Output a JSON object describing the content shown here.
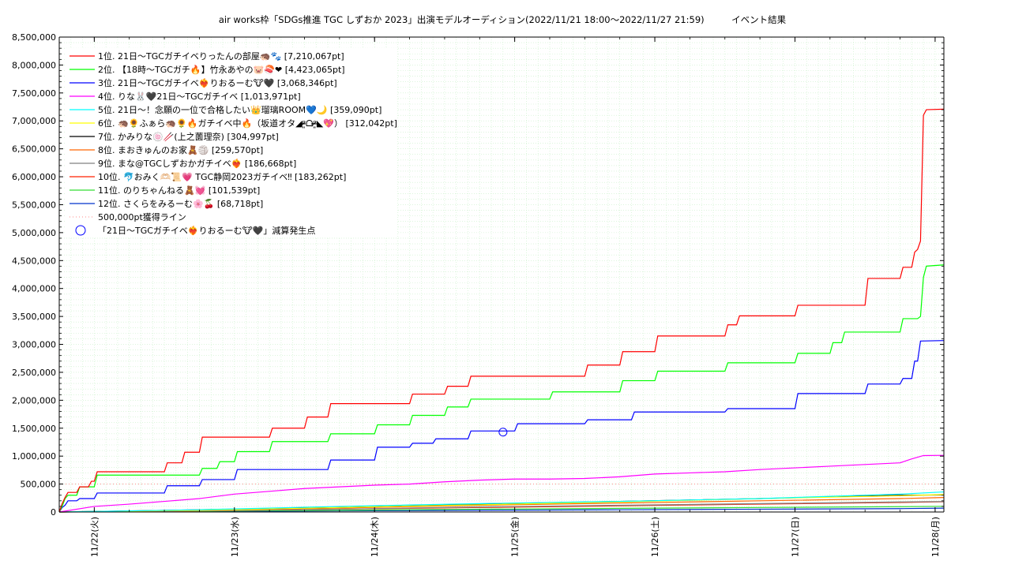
{
  "chart_data": {
    "type": "line",
    "title": "air works枠「SDGs推進 TGC しずおか 2023」出演モデルオーディション(2022/11/21 18:00〜2022/11/27 21:59)　　　イベント結果",
    "xlabel": "",
    "ylabel": "",
    "ylim": [
      0,
      8500000
    ],
    "yticks": [
      0,
      500000,
      1000000,
      1500000,
      2000000,
      2500000,
      3000000,
      3500000,
      4000000,
      4500000,
      5000000,
      5500000,
      6000000,
      6500000,
      7000000,
      7500000,
      8000000,
      8500000
    ],
    "ytick_labels": [
      "0",
      "500,000",
      "1,000,000",
      "1,500,000",
      "2,000,000",
      "2,500,000",
      "3,000,000",
      "3,500,000",
      "4,000,000",
      "4,500,000",
      "5,000,000",
      "5,500,000",
      "6,000,000",
      "6,500,000",
      "7,000,000",
      "7,500,000",
      "8,000,000",
      "8,500,000"
    ],
    "xlim": [
      0,
      151.5
    ],
    "x_unit": "hours since 2022-11-21 18:00",
    "xticks": [
      6,
      30,
      54,
      78,
      102,
      126,
      150
    ],
    "xtick_labels": [
      "11/22(火)",
      "11/23(水)",
      "11/24(木)",
      "11/25(金)",
      "11/26(土)",
      "11/27(日)",
      "11/28(月)"
    ],
    "grid": true,
    "legend_position": "top-left",
    "series": [
      {
        "name": "1位. 21日〜TGCガチイベりったんの部屋🦔🐾 [7,210,067pt]",
        "color": "#ff0000",
        "x": [
          0,
          0.5,
          1,
          1.5,
          3,
          3.5,
          5,
          5.5,
          6,
          6.5,
          18,
          18.5,
          21,
          21.5,
          24,
          24.5,
          30,
          30.5,
          36,
          36.5,
          42,
          42.5,
          46,
          46.5,
          54,
          54.5,
          60,
          60.5,
          66,
          66.5,
          70,
          70.5,
          78,
          78.5,
          90,
          90.5,
          96,
          96.5,
          102,
          102.5,
          114,
          114.5,
          116,
          116.5,
          126,
          126.5,
          138,
          138.5,
          144,
          144.5,
          146,
          146.5,
          147,
          147.5,
          148,
          148.5,
          151.5
        ],
        "y": [
          0,
          150000,
          260000,
          350000,
          350000,
          450000,
          450000,
          550000,
          550000,
          720000,
          720000,
          880000,
          880000,
          1070000,
          1070000,
          1340000,
          1340000,
          1340000,
          1340000,
          1500000,
          1500000,
          1700000,
          1700000,
          1940000,
          1940000,
          1940000,
          1940000,
          2110000,
          2110000,
          2250000,
          2250000,
          2430000,
          2430000,
          2430000,
          2430000,
          2630000,
          2630000,
          2870000,
          2870000,
          3150000,
          3150000,
          3350000,
          3350000,
          3510000,
          3510000,
          3700000,
          3700000,
          4180000,
          4180000,
          4380000,
          4380000,
          4650000,
          4700000,
          4850000,
          7100000,
          7200000,
          7210067
        ]
      },
      {
        "name": "2位. 【18時〜TGCガチ🔥】竹永あやの🐷🍣❤ [4,423,065pt]",
        "color": "#00ff00",
        "x": [
          0,
          0.5,
          1,
          1.5,
          3,
          3.5,
          6,
          6.5,
          24,
          24.5,
          27,
          27.5,
          30,
          30.5,
          36,
          36.5,
          46,
          46.5,
          54,
          54.5,
          60,
          60.5,
          66,
          66.5,
          70,
          70.5,
          78,
          78.5,
          84,
          84.5,
          90,
          90.5,
          96,
          96.5,
          102,
          102.5,
          114,
          114.5,
          126,
          126.5,
          132,
          132.5,
          134,
          134.5,
          144,
          144.5,
          146,
          146.5,
          147,
          147.5,
          148,
          148.5,
          151.5
        ],
        "y": [
          0,
          100000,
          240000,
          300000,
          300000,
          450000,
          450000,
          660000,
          660000,
          780000,
          780000,
          900000,
          900000,
          1080000,
          1080000,
          1260000,
          1260000,
          1400000,
          1400000,
          1560000,
          1560000,
          1730000,
          1730000,
          1880000,
          1880000,
          2020000,
          2020000,
          2020000,
          2020000,
          2150000,
          2150000,
          2150000,
          2150000,
          2350000,
          2350000,
          2520000,
          2520000,
          2670000,
          2670000,
          2840000,
          2840000,
          3030000,
          3030000,
          3220000,
          3220000,
          3460000,
          3460000,
          3460000,
          3460000,
          3500000,
          4200000,
          4400000,
          4423065
        ]
      },
      {
        "name": "3位. 21日〜TGCガチイベ❤‍🔥りおるーむ🐮🖤 [3,068,346pt]",
        "color": "#0000ff",
        "x": [
          0,
          0.5,
          1,
          1.5,
          3,
          3.5,
          6,
          6.5,
          12,
          12.5,
          18,
          18.5,
          24,
          24.5,
          30,
          30.5,
          36,
          36.5,
          46,
          46.5,
          54,
          54.5,
          60,
          60.5,
          64,
          64.5,
          70,
          70.5,
          78,
          78.5,
          84,
          84.5,
          90,
          90.5,
          98,
          98.5,
          102,
          102.5,
          114,
          114.5,
          126,
          126.5,
          138,
          138.5,
          144,
          144.5,
          146,
          146.5,
          147,
          147.5,
          151.5
        ],
        "y": [
          0,
          80000,
          120000,
          200000,
          200000,
          240000,
          240000,
          340000,
          340000,
          340000,
          340000,
          470000,
          470000,
          580000,
          580000,
          760000,
          760000,
          760000,
          760000,
          930000,
          930000,
          1160000,
          1160000,
          1230000,
          1230000,
          1310000,
          1310000,
          1450000,
          1450000,
          1580000,
          1580000,
          1580000,
          1580000,
          1650000,
          1650000,
          1790000,
          1790000,
          1790000,
          1790000,
          1850000,
          1850000,
          2120000,
          2120000,
          2290000,
          2290000,
          2390000,
          2390000,
          2700000,
          2700000,
          3060000,
          3068346
        ]
      },
      {
        "name": "4位. りな🐰🖤21日〜TGCガチイベ [1,013,971pt]",
        "color": "#ff00ff",
        "x": [
          0,
          6,
          12,
          18,
          24,
          30,
          36,
          42,
          54,
          60,
          66,
          72,
          78,
          84,
          90,
          96,
          102,
          108,
          114,
          120,
          126,
          132,
          138,
          144,
          146,
          148,
          151.5
        ],
        "y": [
          0,
          100000,
          140000,
          190000,
          240000,
          320000,
          370000,
          420000,
          480000,
          500000,
          540000,
          570000,
          590000,
          590000,
          600000,
          630000,
          680000,
          700000,
          720000,
          760000,
          790000,
          820000,
          850000,
          880000,
          950000,
          1010000,
          1013971
        ]
      },
      {
        "name": "5位. 21日〜！念願の一位で合格したい👑瑠璃ROOM💙🌙 [359,090pt]",
        "color": "#00ffff",
        "x": [
          0,
          24,
          48,
          72,
          96,
          120,
          144,
          151.5
        ],
        "y": [
          0,
          40000,
          100000,
          150000,
          190000,
          240000,
          320000,
          359090
        ]
      },
      {
        "name": "6位. 🦔🌻ふぁら🦔🌻🔥ガチイベ中🔥（坂道オタ◢ᵒ̴̶̷͈ᗝᵒ̴̶̷͈◣💖） [312,042pt]",
        "color": "#ffff00",
        "x": [
          0,
          24,
          48,
          72,
          96,
          120,
          144,
          151.5
        ],
        "y": [
          0,
          30000,
          80000,
          130000,
          180000,
          240000,
          290000,
          312042
        ]
      },
      {
        "name": "7位. かみりな🍥🥢(上之薗理奈) [304,997pt]",
        "color": "#000000",
        "x": [
          0,
          24,
          48,
          72,
          96,
          120,
          144,
          151.5
        ],
        "y": [
          0,
          40000,
          80000,
          140000,
          190000,
          240000,
          300000,
          304997
        ]
      },
      {
        "name": "8位. まおきゅんのお家🧸🏐 [259,570pt]",
        "color": "#ff6600",
        "x": [
          0,
          24,
          48,
          72,
          96,
          120,
          144,
          151.5
        ],
        "y": [
          0,
          30000,
          70000,
          120000,
          160000,
          200000,
          240000,
          259570
        ]
      },
      {
        "name": "9位. まな@TGCしずおかガチイベ❤‍🔥 [186,668pt]",
        "color": "#808080",
        "x": [
          0,
          24,
          48,
          72,
          96,
          120,
          144,
          151.5
        ],
        "y": [
          0,
          20000,
          50000,
          90000,
          120000,
          150000,
          180000,
          186668
        ]
      },
      {
        "name": "10位. 🐬おみく🫶🏻📜💗 TGC静岡2023ガチイベ‼ [183,262pt]",
        "color": "#ff2200",
        "x": [
          0,
          24,
          48,
          72,
          96,
          120,
          144,
          151.5
        ],
        "y": [
          0,
          20000,
          50000,
          80000,
          110000,
          140000,
          170000,
          183262
        ]
      },
      {
        "name": "11位. のりちゃんねる🧸💓 [101,539pt]",
        "color": "#33dd33",
        "x": [
          0,
          24,
          48,
          72,
          96,
          120,
          144,
          151.5
        ],
        "y": [
          0,
          15000,
          30000,
          50000,
          65000,
          80000,
          95000,
          101539
        ]
      },
      {
        "name": "12位. さくらをみるーむ🌸🍒 [68,718pt]",
        "color": "#0033cc",
        "x": [
          0,
          24,
          48,
          72,
          96,
          120,
          144,
          151.5
        ],
        "y": [
          0,
          10000,
          20000,
          30000,
          40000,
          50000,
          60000,
          68718
        ]
      }
    ],
    "reference_line": {
      "name": "500,000pt獲得ライン",
      "value": 500000,
      "color": "#ff8888"
    },
    "marker": {
      "label": "「21日〜TGCガチイベ❤‍🔥りおるーむ🐮🖤」減算発生点",
      "x": 76,
      "y": 1430000,
      "color": "#0000ff"
    }
  }
}
